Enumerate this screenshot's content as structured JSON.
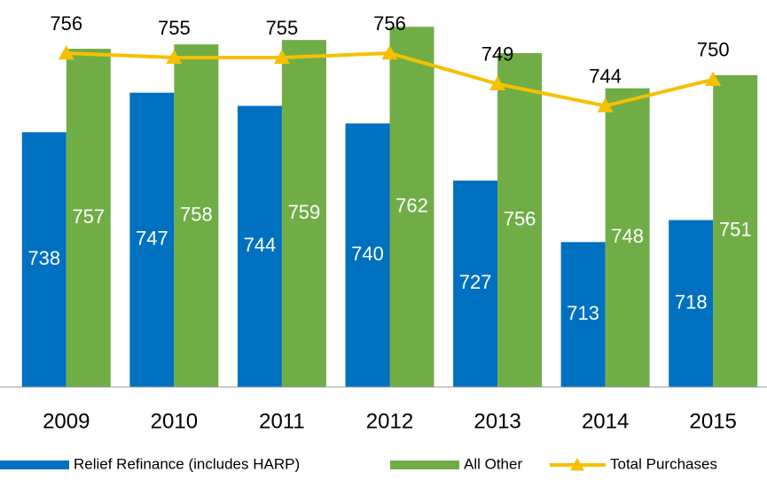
{
  "chart_data": {
    "type": "bar",
    "categories": [
      "2009",
      "2010",
      "2011",
      "2012",
      "2013",
      "2014",
      "2015"
    ],
    "series": [
      {
        "name": "Relief Refinance (includes HARP)",
        "type": "bar",
        "color": "#0070c0",
        "values": [
          738,
          747,
          744,
          740,
          727,
          713,
          718
        ]
      },
      {
        "name": "All Other",
        "type": "bar",
        "color": "#70ad47",
        "values": [
          757,
          758,
          759,
          762,
          756,
          748,
          751
        ]
      },
      {
        "name": "Total Purchases",
        "type": "line",
        "color": "#f5c000",
        "values": [
          756,
          755,
          755,
          756,
          749,
          744,
          750
        ]
      }
    ],
    "ylim": [
      680,
      768
    ],
    "legend": "bottom"
  }
}
